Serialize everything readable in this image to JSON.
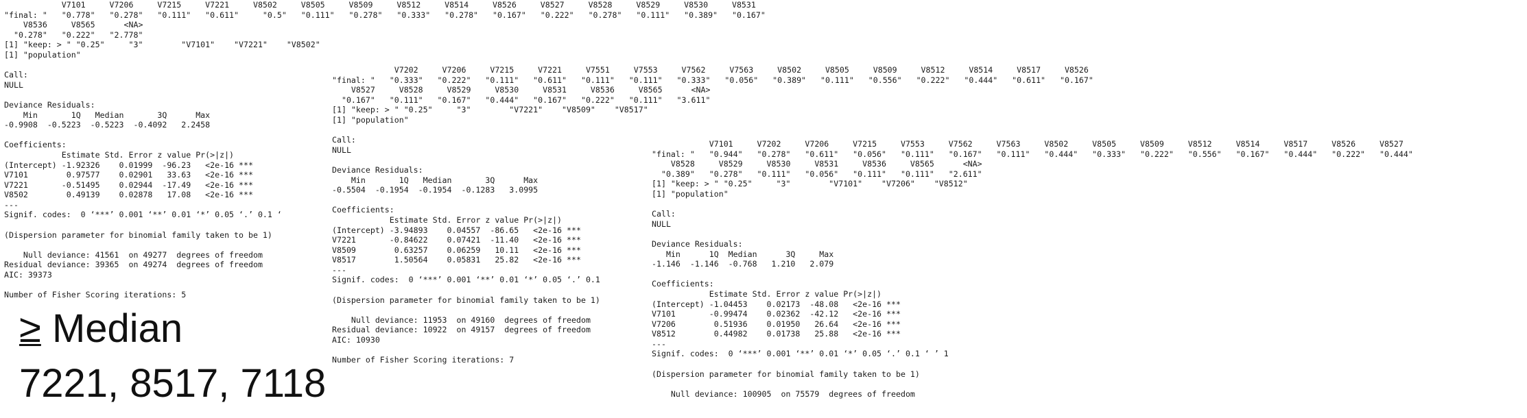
{
  "panels": [
    {
      "lines": [
        "            V7101     V7206     V7215     V7221     V8502     V8505     V8509     V8512     V8514     V8526     V8527     V8528     V8529     V8530     V8531",
        "\"final: \"   \"0.778\"   \"0.278\"   \"0.111\"   \"0.611\"     \"0.5\"   \"0.111\"   \"0.278\"   \"0.333\"   \"0.278\"   \"0.167\"   \"0.222\"   \"0.278\"   \"0.111\"   \"0.389\"   \"0.167\"",
        "    V8536     V8565      <NA>",
        "  \"0.278\"   \"0.222\"   \"2.778\"",
        "[1] \"keep: > \" \"0.25\"     \"3\"        \"V7101\"    \"V7221\"    \"V8502\"",
        "[1] \"population\"",
        "",
        "Call:",
        "NULL",
        "",
        "Deviance Residuals:",
        "    Min       1Q   Median       3Q      Max",
        "-0.9908  -0.5223  -0.5223  -0.4092   2.2458",
        "",
        "Coefficients:",
        "            Estimate Std. Error z value Pr(>|z|)",
        "(Intercept) -1.92326    0.01999  -96.23   <2e-16 ***",
        "V7101        0.97577    0.02901   33.63   <2e-16 ***",
        "V7221       -0.51495    0.02944  -17.49   <2e-16 ***",
        "V8502        0.49139    0.02878   17.08   <2e-16 ***",
        "---",
        "Signif. codes:  0 ‘***’ 0.001 ‘**’ 0.01 ‘*’ 0.05 ‘.’ 0.1 ‘",
        "",
        "(Dispersion parameter for binomial family taken to be 1)",
        "",
        "    Null deviance: 41561  on 49277  degrees of freedom",
        "Residual deviance: 39365  on 49274  degrees of freedom",
        "AIC: 39373",
        "",
        "Number of Fisher Scoring iterations: 5"
      ]
    },
    {
      "lines": [
        "             V7202     V7206     V7215     V7221     V7551     V7553     V7562     V7563     V8502     V8505     V8509     V8512     V8514     V8517     V8526",
        "\"final: \"   \"0.333\"   \"0.222\"   \"0.111\"   \"0.611\"   \"0.111\"   \"0.111\"   \"0.333\"   \"0.056\"   \"0.389\"   \"0.111\"   \"0.556\"   \"0.222\"   \"0.444\"   \"0.611\"   \"0.167\"",
        "    V8527     V8528     V8529     V8530     V8531     V8536     V8565      <NA>",
        "  \"0.167\"   \"0.111\"   \"0.167\"   \"0.444\"   \"0.167\"   \"0.222\"   \"0.111\"   \"3.611\"",
        "[1] \"keep: > \" \"0.25\"     \"3\"        \"V7221\"    \"V8509\"    \"V8517\"",
        "[1] \"population\"",
        "",
        "Call:",
        "NULL",
        "",
        "Deviance Residuals:",
        "    Min       1Q   Median       3Q      Max",
        "-0.5504  -0.1954  -0.1954  -0.1283   3.0995",
        "",
        "Coefficients:",
        "            Estimate Std. Error z value Pr(>|z|)",
        "(Intercept) -3.94893    0.04557  -86.65   <2e-16 ***",
        "V7221       -0.84622    0.07421  -11.40   <2e-16 ***",
        "V8509        0.63257    0.06259   10.11   <2e-16 ***",
        "V8517        1.50564    0.05831   25.82   <2e-16 ***",
        "---",
        "Signif. codes:  0 ‘***’ 0.001 ‘**’ 0.01 ‘*’ 0.05 ‘.’ 0.1",
        "",
        "(Dispersion parameter for binomial family taken to be 1)",
        "",
        "    Null deviance: 11953  on 49160  degrees of freedom",
        "Residual deviance: 10922  on 49157  degrees of freedom",
        "AIC: 10930",
        "",
        "Number of Fisher Scoring iterations: 7"
      ]
    },
    {
      "lines": [
        "            V7101     V7202     V7206     V7215     V7553     V7562     V7563     V8502     V8505     V8509     V8512     V8514     V8517     V8526     V8527",
        "\"final: \"   \"0.944\"   \"0.278\"   \"0.611\"   \"0.056\"   \"0.111\"   \"0.167\"   \"0.111\"   \"0.444\"   \"0.333\"   \"0.222\"   \"0.556\"   \"0.167\"   \"0.444\"   \"0.222\"   \"0.444\"",
        "    V8528     V8529     V8530     V8531     V8536     V8565      <NA>",
        "  \"0.389\"   \"0.278\"   \"0.111\"   \"0.056\"   \"0.111\"   \"0.111\"   \"2.611\"",
        "[1] \"keep: > \" \"0.25\"     \"3\"        \"V7101\"    \"V7206\"    \"V8512\"",
        "[1] \"population\"",
        "",
        "Call:",
        "NULL",
        "",
        "Deviance Residuals:",
        "   Min      1Q  Median      3Q     Max",
        "-1.146  -1.146  -0.768   1.210   2.079",
        "",
        "Coefficients:",
        "            Estimate Std. Error z value Pr(>|z|)",
        "(Intercept) -1.04453    0.02173  -48.08   <2e-16 ***",
        "V7101       -0.99474    0.02362  -42.12   <2e-16 ***",
        "V7206        0.51936    0.01950   26.64   <2e-16 ***",
        "V8512        0.44982    0.01738   25.88   <2e-16 ***",
        "---",
        "Signif. codes:  0 ‘***’ 0.001 ‘**’ 0.01 ‘*’ 0.05 ‘.’ 0.1 ‘ ’ 1",
        "",
        "(Dispersion parameter for binomial family taken to be 1)",
        "",
        "    Null deviance: 100905  on 75579  degrees of freedom"
      ]
    }
  ],
  "overlay": {
    "symbol": "≥",
    "title": " Median",
    "values": "7221, 8517, 7118"
  }
}
